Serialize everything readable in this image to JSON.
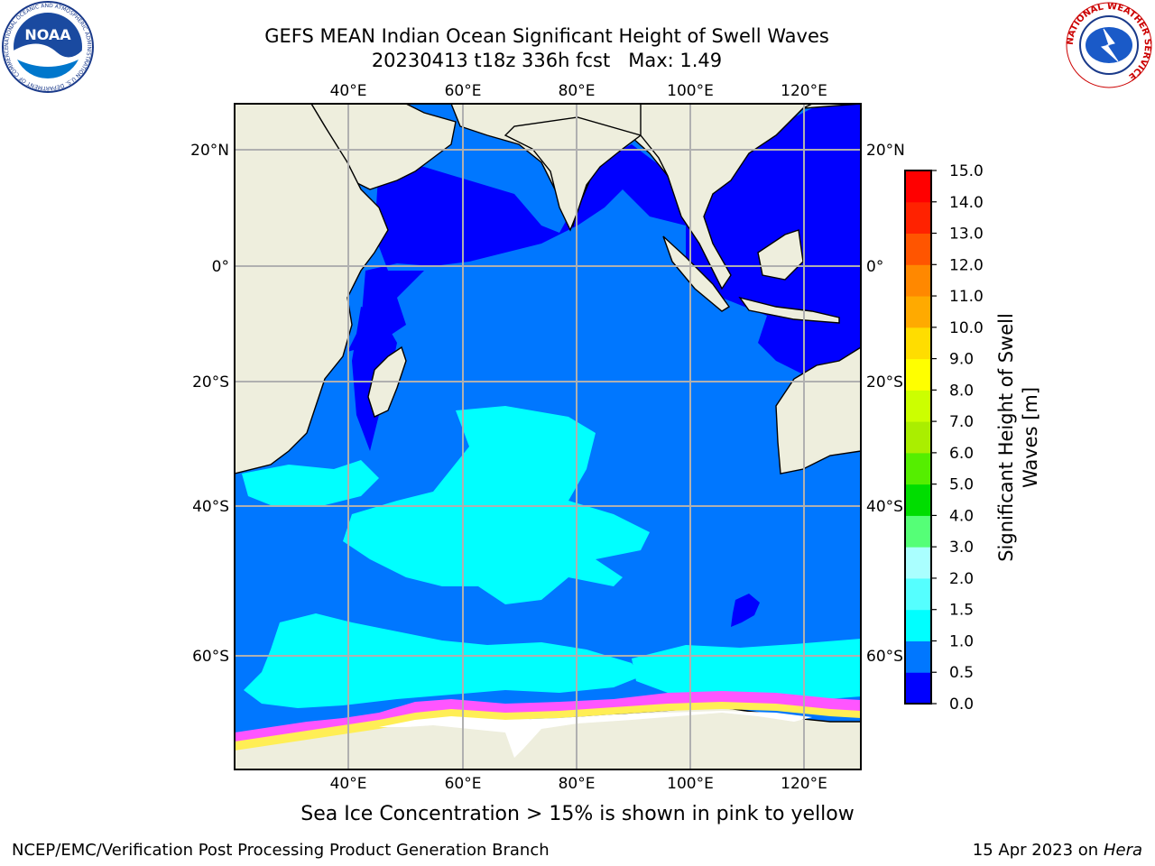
{
  "header": {
    "title_line1": "GEFS MEAN Indian Ocean Significant Height of Swell Waves",
    "title_line2": "20230413 t18z 336h fcst   Max: 1.49"
  },
  "caption": "Sea Ice Concentration > 15% is shown in pink to yellow",
  "footer": {
    "left": "NCEP/EMC/Verification Post Processing Product Generation Branch",
    "date": "15 Apr 2023 on",
    "machine": "Hera"
  },
  "logos": {
    "noaa_text": "NOAA",
    "noaa_ring": "NATIONAL OCEANIC AND ATMOSPHERIC ADMINISTRATION  U.S. DEPARTMENT OF COMMERCE",
    "nws_ring": "NATIONAL WEATHER SERVICE"
  },
  "map": {
    "lon_ticks": [
      "40°E",
      "60°E",
      "80°E",
      "100°E",
      "120°E"
    ],
    "lat_ticks": [
      "20°N",
      "0°",
      "20°S",
      "40°S",
      "60°S"
    ]
  },
  "colorbar": {
    "label_line1": "Significant Height of Swell",
    "label_line2": "Waves [m]",
    "ticks": [
      "15.0",
      "14.0",
      "13.0",
      "12.0",
      "11.0",
      "10.0",
      "9.0",
      "8.0",
      "7.0",
      "6.0",
      "5.0",
      "4.0",
      "3.0",
      "2.0",
      "1.5",
      "1.0",
      "0.5",
      "0.0"
    ],
    "colors_bottom_to_top": [
      "#0000ff",
      "#0077ff",
      "#00ffff",
      "#55ffff",
      "#aaffff",
      "#55ff77",
      "#00dd00",
      "#55ee00",
      "#aaee00",
      "#ccff00",
      "#ffff00",
      "#ffdd00",
      "#ffaa00",
      "#ff8800",
      "#ff5500",
      "#ff2200",
      "#ff0000"
    ]
  },
  "colors": {
    "land": "#eeeedd",
    "ocean_deep": "#0000ff",
    "ocean_mid": "#0077ff",
    "swell_cyan": "#00ffff",
    "ice_pink": "#ff55ff",
    "ice_yellow": "#ffee55",
    "grid": "#b0b0b0"
  }
}
